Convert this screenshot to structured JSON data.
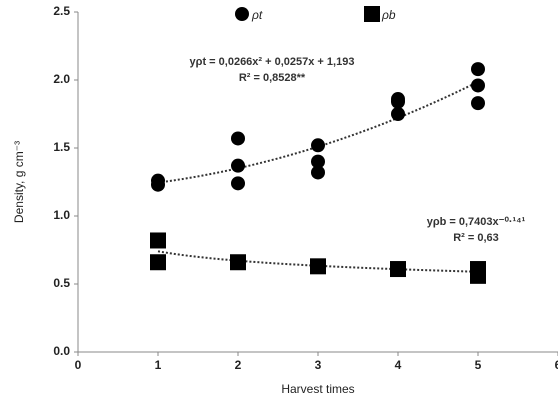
{
  "chart_data": {
    "type": "scatter",
    "x_label": "Harvest times",
    "y_label": "Density, g cm⁻³",
    "xlim": [
      0,
      6
    ],
    "xticks": [
      0,
      1,
      2,
      3,
      4,
      5,
      6
    ],
    "ylim": [
      0,
      2.5
    ],
    "yticks": [
      {
        "value": 0,
        "label": "0.0"
      },
      0.5,
      {
        "value": 1,
        "label": "1.0"
      },
      1.5,
      {
        "value": 2,
        "label": "2.0"
      },
      2.5
    ],
    "legend_position": "top",
    "series": [
      {
        "name": "ρt",
        "color": "#000000",
        "marker": "circle",
        "x": [
          1,
          1,
          2,
          2,
          2,
          3,
          3,
          3,
          4,
          4,
          4,
          5,
          5,
          5
        ],
        "values": [
          1.26,
          1.23,
          1.57,
          1.37,
          1.24,
          1.52,
          1.4,
          1.32,
          1.86,
          1.84,
          1.75,
          2.08,
          1.96,
          1.83
        ],
        "trendline": {
          "kind": "polynomial",
          "coefficients": [
            0.0266,
            0.0257,
            1.193
          ],
          "equation": "yρt = 0,0266x² + 0,0257x + 1,193",
          "r2_label": "R² = 0,8528**"
        }
      },
      {
        "name": "ρb",
        "color": "#000000",
        "marker": "square",
        "x": [
          1,
          1,
          2,
          3,
          4,
          5,
          5
        ],
        "values": [
          0.82,
          0.66,
          0.66,
          0.63,
          0.61,
          0.61,
          0.56
        ],
        "trendline": {
          "kind": "power",
          "coefficients": [
            0.7403,
            -0.141
          ],
          "equation": "yρb = 0,7403x⁻⁰·¹⁴¹",
          "r2_label": "R² = 0,63"
        }
      }
    ]
  }
}
